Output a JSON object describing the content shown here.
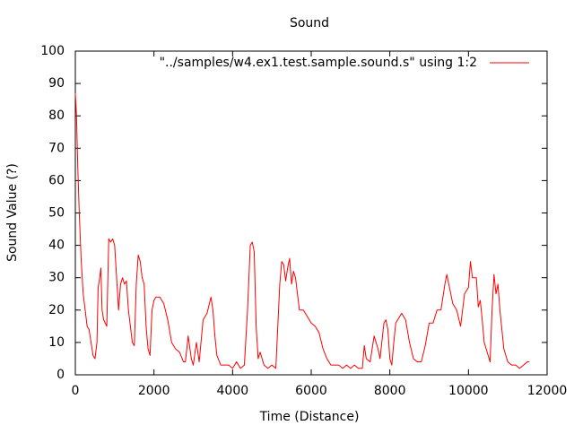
{
  "chart_data": {
    "type": "line",
    "title": "Sound",
    "x_label": "Time (Distance)",
    "y_label": "Sound Value (?)",
    "legend": "top-right",
    "x": [
      0,
      30,
      60,
      100,
      150,
      200,
      250,
      300,
      350,
      400,
      450,
      500,
      550,
      580,
      620,
      650,
      680,
      720,
      760,
      800,
      850,
      900,
      950,
      1000,
      1050,
      1100,
      1150,
      1200,
      1250,
      1300,
      1350,
      1400,
      1450,
      1500,
      1550,
      1600,
      1650,
      1700,
      1750,
      1800,
      1850,
      1900,
      1950,
      2000,
      2050,
      2150,
      2250,
      2350,
      2450,
      2550,
      2650,
      2750,
      2800,
      2870,
      2950,
      3000,
      3080,
      3150,
      3250,
      3350,
      3450,
      3500,
      3550,
      3600,
      3700,
      3800,
      3900,
      4000,
      4100,
      4200,
      4300,
      4380,
      4450,
      4500,
      4550,
      4600,
      4650,
      4700,
      4800,
      4900,
      5000,
      5100,
      5200,
      5250,
      5300,
      5350,
      5400,
      5450,
      5500,
      5550,
      5600,
      5650,
      5700,
      5800,
      5900,
      6000,
      6100,
      6200,
      6300,
      6400,
      6500,
      6600,
      6700,
      6800,
      6900,
      7000,
      7100,
      7200,
      7300,
      7350,
      7400,
      7500,
      7600,
      7700,
      7750,
      7850,
      7900,
      7950,
      8000,
      8050,
      8100,
      8150,
      8200,
      8300,
      8400,
      8500,
      8600,
      8700,
      8800,
      8900,
      9000,
      9100,
      9200,
      9300,
      9400,
      9450,
      9500,
      9600,
      9700,
      9800,
      9850,
      9900,
      10000,
      10050,
      10100,
      10200,
      10250,
      10300,
      10350,
      10400,
      10500,
      10550,
      10600,
      10650,
      10700,
      10750,
      10800,
      10850,
      10900,
      11000,
      11100,
      11200,
      11300,
      11400,
      11500,
      11550
    ],
    "series": [
      {
        "name": "\"../samples/w4.ex1.test.sample.sound.s\" using 1:2",
        "color": "#ff0000",
        "values": [
          87,
          80,
          65,
          50,
          35,
          25,
          20,
          15,
          14,
          10,
          6,
          5,
          10,
          27,
          30,
          33,
          20,
          17,
          16,
          15,
          42,
          41,
          42,
          40,
          30,
          20,
          28,
          30,
          28,
          29,
          20,
          15,
          10,
          9,
          28,
          37,
          35,
          30,
          28,
          15,
          8,
          6,
          20,
          23,
          24,
          24,
          22,
          17,
          10,
          8,
          7,
          4,
          4,
          12,
          5,
          3,
          10,
          4,
          17,
          19,
          24,
          20,
          12,
          6,
          3,
          3,
          3,
          2,
          4,
          2,
          3,
          20,
          40,
          41,
          38,
          15,
          5,
          7,
          3,
          2,
          3,
          2,
          28,
          35,
          34,
          29,
          33,
          36,
          28,
          32,
          30,
          25,
          20,
          20,
          18,
          16,
          15,
          13,
          8,
          5,
          3,
          3,
          3,
          2,
          3,
          2,
          3,
          2,
          2,
          9,
          5,
          4,
          12,
          8,
          5,
          16,
          17,
          14,
          5,
          3,
          10,
          16,
          17,
          19,
          17,
          10,
          5,
          4,
          4,
          9,
          16,
          16,
          20,
          20,
          28,
          31,
          28,
          22,
          20,
          15,
          20,
          25,
          27,
          35,
          30,
          30,
          21,
          23,
          17,
          10,
          6,
          4,
          20,
          31,
          25,
          28,
          20,
          14,
          8,
          4,
          3,
          3,
          2,
          3,
          4,
          4
        ]
      }
    ],
    "xlim": [
      0,
      12000
    ],
    "xticks": [
      0,
      2000,
      4000,
      6000,
      8000,
      10000,
      12000
    ],
    "ylim": [
      0,
      100
    ],
    "yticks": [
      0,
      10,
      20,
      30,
      40,
      50,
      60,
      70,
      80,
      90,
      100
    ]
  }
}
